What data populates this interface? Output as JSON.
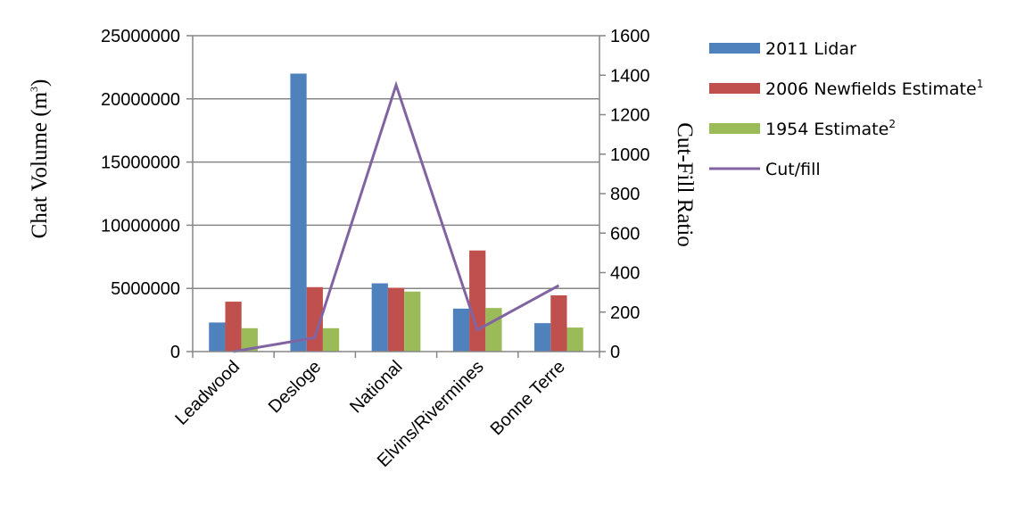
{
  "chart_data": {
    "type": "bar",
    "categories": [
      "Leadwood",
      "Desloge",
      "National",
      "Elvins/Rivermines",
      "Bonne Terre"
    ],
    "series": [
      {
        "name": "2011 Lidar",
        "axis": "left",
        "kind": "bar",
        "color": "#4F81BD",
        "values": [
          2300000,
          22000000,
          5400000,
          3400000,
          2250000
        ]
      },
      {
        "name": "2006 Newfields Estimate",
        "sup": "1",
        "axis": "left",
        "kind": "bar",
        "color": "#C0504D",
        "values": [
          3950000,
          5100000,
          5050000,
          8000000,
          4450000
        ]
      },
      {
        "name": "1954 Estimate",
        "sup": "2",
        "axis": "left",
        "kind": "bar",
        "color": "#9BBB59",
        "values": [
          1850000,
          1850000,
          4750000,
          3450000,
          1900000
        ]
      },
      {
        "name": "Cut/fill",
        "axis": "right",
        "kind": "line",
        "color": "#8064A2",
        "values": [
          0,
          70,
          1350,
          110,
          335
        ]
      }
    ],
    "ylabel": "Chat Volume  (m",
    "ylabel_sup": "3",
    "ylabel_suffix": ")",
    "y2label": "Cut-Fill Ratio",
    "ylim": [
      0,
      25000000
    ],
    "y2lim": [
      0,
      1600
    ],
    "yticks": [
      "0",
      "5000000",
      "10000000",
      "15000000",
      "20000000",
      "25000000"
    ],
    "yticks_values": [
      0,
      5000000,
      10000000,
      15000000,
      20000000,
      25000000
    ],
    "y2ticks": [
      "0",
      "200",
      "400",
      "600",
      "800",
      "1000",
      "1200",
      "1400",
      "1600"
    ],
    "y2ticks_values": [
      0,
      200,
      400,
      600,
      800,
      1000,
      1200,
      1400,
      1600
    ],
    "grid": true,
    "legend_position": "right"
  }
}
